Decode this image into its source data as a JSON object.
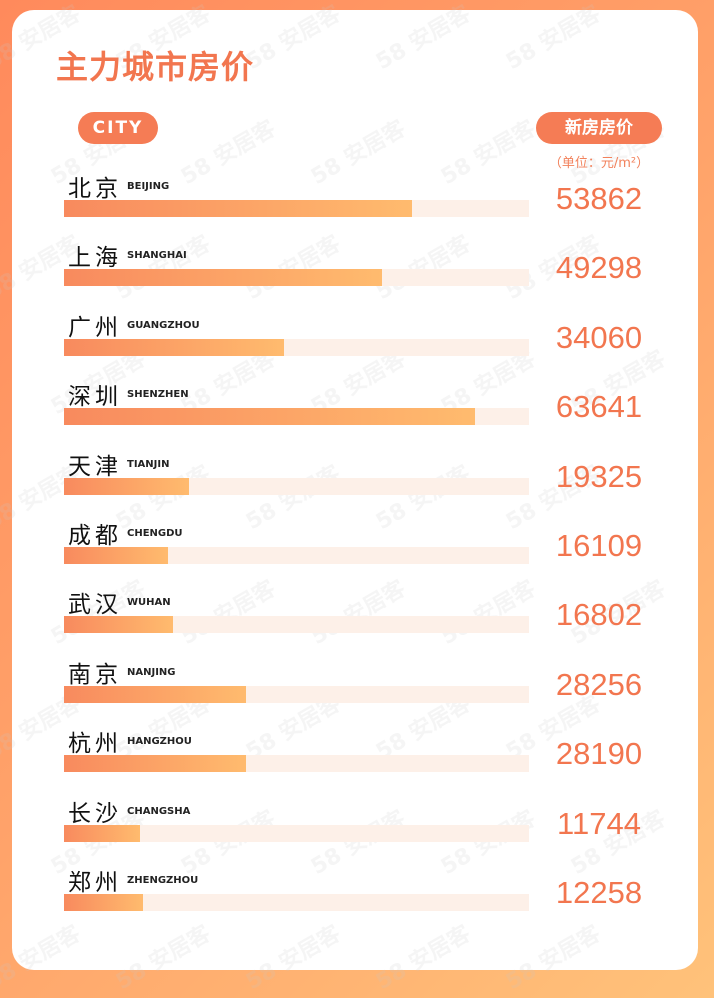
{
  "title": "主力城市房价",
  "watermark": "58 安居客",
  "colors": {
    "accent": "#f2764f",
    "bar_start": "#f88a5e",
    "bar_end": "#ffbb6e",
    "track": "#fdf0e8"
  },
  "chart_data": {
    "type": "bar",
    "orientation": "horizontal",
    "title": "主力城市房价",
    "category_header": "CITY",
    "value_header": "新房房价",
    "unit": "（单位：元/m²）",
    "categories": [
      {
        "cn": "北京",
        "en": "BEIJING"
      },
      {
        "cn": "上海",
        "en": "SHANGHAI"
      },
      {
        "cn": "广州",
        "en": "GUANGZHOU"
      },
      {
        "cn": "深圳",
        "en": "SHENZHEN"
      },
      {
        "cn": "天津",
        "en": "TIANJIN"
      },
      {
        "cn": "成都",
        "en": "CHENGDU"
      },
      {
        "cn": "武汉",
        "en": "WUHAN"
      },
      {
        "cn": "南京",
        "en": "NANJING"
      },
      {
        "cn": "杭州",
        "en": "HANGZHOU"
      },
      {
        "cn": "长沙",
        "en": "CHANGSHA"
      },
      {
        "cn": "郑州",
        "en": "ZHENGZHOU"
      }
    ],
    "values": [
      53862,
      49298,
      34060,
      63641,
      19325,
      16109,
      16802,
      28256,
      28190,
      11744,
      12258
    ]
  }
}
